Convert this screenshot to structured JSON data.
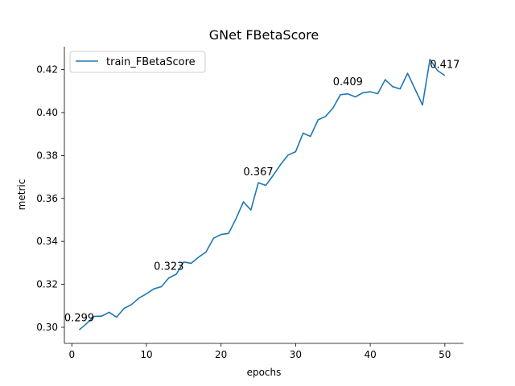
{
  "chart_data": {
    "type": "line",
    "title": "GNet FBetaScore",
    "xlabel": "epochs",
    "ylabel": "metric",
    "xlim": [
      -1,
      52.5
    ],
    "ylim": [
      0.2925,
      0.4307
    ],
    "x_ticks": [
      0,
      10,
      20,
      30,
      40,
      50
    ],
    "y_ticks": [
      0.3,
      0.32,
      0.34,
      0.36,
      0.38,
      0.4,
      0.42
    ],
    "y_tick_labels": [
      "0.30",
      "0.32",
      "0.34",
      "0.36",
      "0.38",
      "0.40",
      "0.42"
    ],
    "grid": false,
    "legend_position": "upper-left",
    "series": [
      {
        "name": "train_FBetaScore",
        "color": "#1f77b4",
        "x": [
          1,
          2,
          3,
          4,
          5,
          6,
          7,
          8,
          9,
          10,
          11,
          12,
          13,
          14,
          15,
          16,
          17,
          18,
          19,
          20,
          21,
          22,
          23,
          24,
          25,
          26,
          27,
          28,
          29,
          30,
          31,
          32,
          33,
          34,
          35,
          36,
          37,
          38,
          39,
          40,
          41,
          42,
          43,
          44,
          45,
          46,
          47,
          48,
          49,
          50
        ],
        "values": [
          0.2988,
          0.3018,
          0.3051,
          0.3052,
          0.307,
          0.3047,
          0.3088,
          0.3106,
          0.3136,
          0.3156,
          0.3179,
          0.3189,
          0.323,
          0.3247,
          0.3304,
          0.3298,
          0.3327,
          0.3351,
          0.3415,
          0.3432,
          0.3437,
          0.3505,
          0.3584,
          0.3546,
          0.3673,
          0.3661,
          0.3708,
          0.3759,
          0.3802,
          0.3818,
          0.3904,
          0.3889,
          0.3966,
          0.3982,
          0.4021,
          0.4083,
          0.4087,
          0.4073,
          0.4092,
          0.4097,
          0.4088,
          0.4153,
          0.4121,
          0.411,
          0.4183,
          0.411,
          0.4035,
          0.4248,
          0.4196,
          0.4172
        ]
      }
    ],
    "annotations": [
      {
        "x": 1,
        "y": 0.299,
        "text": "0.299"
      },
      {
        "x": 13,
        "y": 0.323,
        "text": "0.323"
      },
      {
        "x": 25,
        "y": 0.367,
        "text": "0.367"
      },
      {
        "x": 37,
        "y": 0.409,
        "text": "0.409"
      },
      {
        "x": 50,
        "y": 0.417,
        "text": "0.417"
      }
    ]
  }
}
